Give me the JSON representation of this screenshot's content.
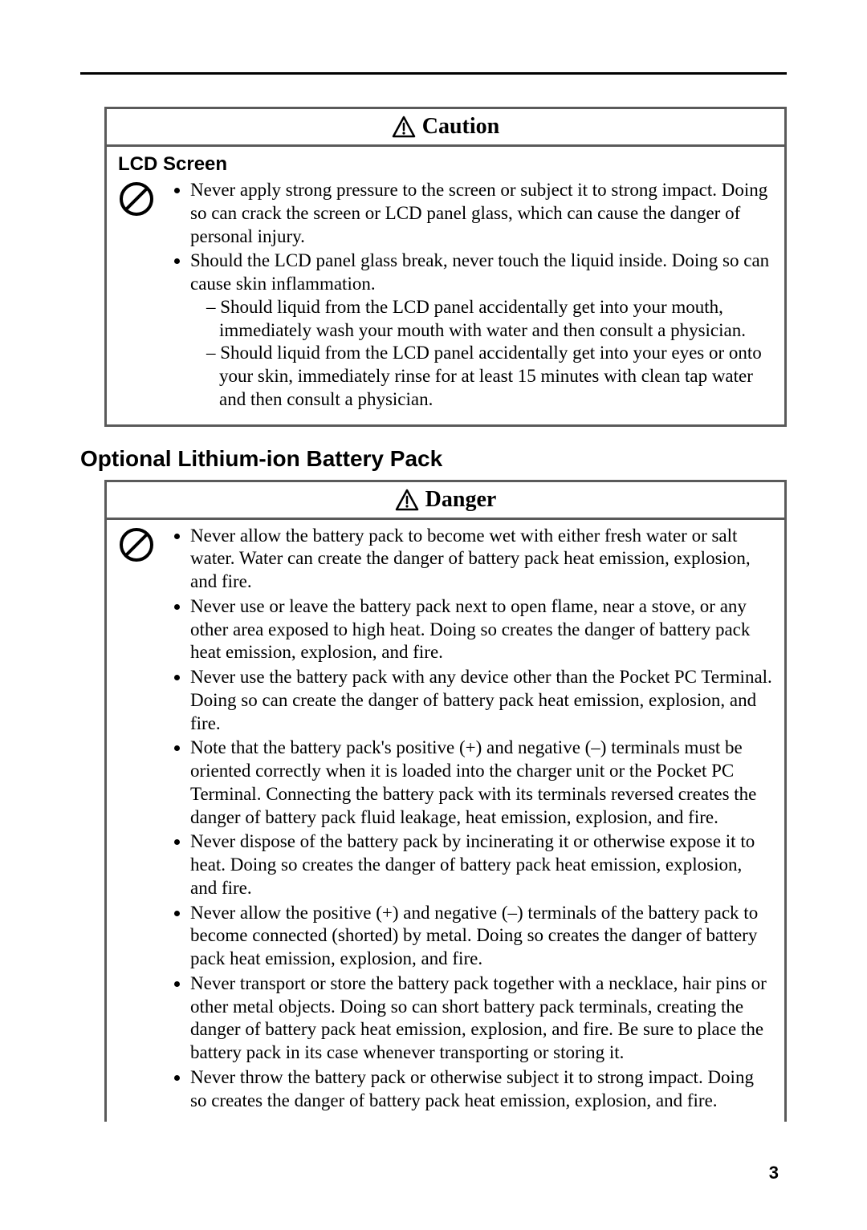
{
  "page_number": "3",
  "caution_box": {
    "header_label": "Caution",
    "subheading": "LCD Screen",
    "bullets": [
      {
        "text": "Never apply strong pressure to the screen or subject it to strong impact. Doing so can crack the screen or LCD panel glass, which can cause the danger of personal injury."
      },
      {
        "text": "Should the LCD panel glass break, never touch the liquid inside. Doing so can cause skin inflammation.",
        "sub": [
          "Should liquid from the LCD panel accidentally get into your mouth, immediately wash your mouth with water and then consult a physician.",
          "Should liquid from the LCD panel accidentally get into your eyes or onto your skin, immediately rinse for at least 15 minutes with clean tap water and then consult a physician."
        ]
      }
    ]
  },
  "section_title": "Optional Lithium-ion Battery Pack",
  "danger_box": {
    "header_label": "Danger",
    "bullets": [
      "Never allow the battery pack to become wet with either fresh water or salt water. Water can create the danger of battery pack heat emission, explosion, and fire.",
      "Never use or leave the battery pack next to open flame, near a stove, or any other area exposed to high heat. Doing so creates the danger of battery pack heat emission, explosion, and fire.",
      "Never use the battery pack with any device other than the Pocket PC Terminal. Doing so can create the danger of battery pack heat emission, explosion, and fire.",
      "Note that the battery pack's positive (+) and negative (–) terminals must be oriented correctly when it is loaded into the charger unit or the Pocket PC Terminal. Connecting the battery pack with its terminals reversed creates the danger of battery pack fluid leakage, heat emission, explosion, and fire.",
      "Never dispose of the battery pack by incinerating it or otherwise expose it to heat. Doing so creates the danger of battery pack heat emission, explosion, and fire.",
      "Never allow the positive (+) and negative (–) terminals of the battery pack to become connected (shorted) by metal. Doing so creates the danger of battery pack heat emission, explosion, and fire.",
      "Never transport or store the battery pack together with a necklace, hair pins or other metal objects. Doing so can short battery pack terminals, creating the danger of battery pack heat emission, explosion, and fire. Be sure to place the battery pack in its case whenever transporting or storing it.",
      "Never throw the battery pack or otherwise subject it to strong impact. Doing so creates the danger of battery pack heat emission, explosion, and fire."
    ]
  },
  "colors": {
    "border": "#5a5a5a",
    "text": "#000000",
    "background": "#ffffff"
  }
}
